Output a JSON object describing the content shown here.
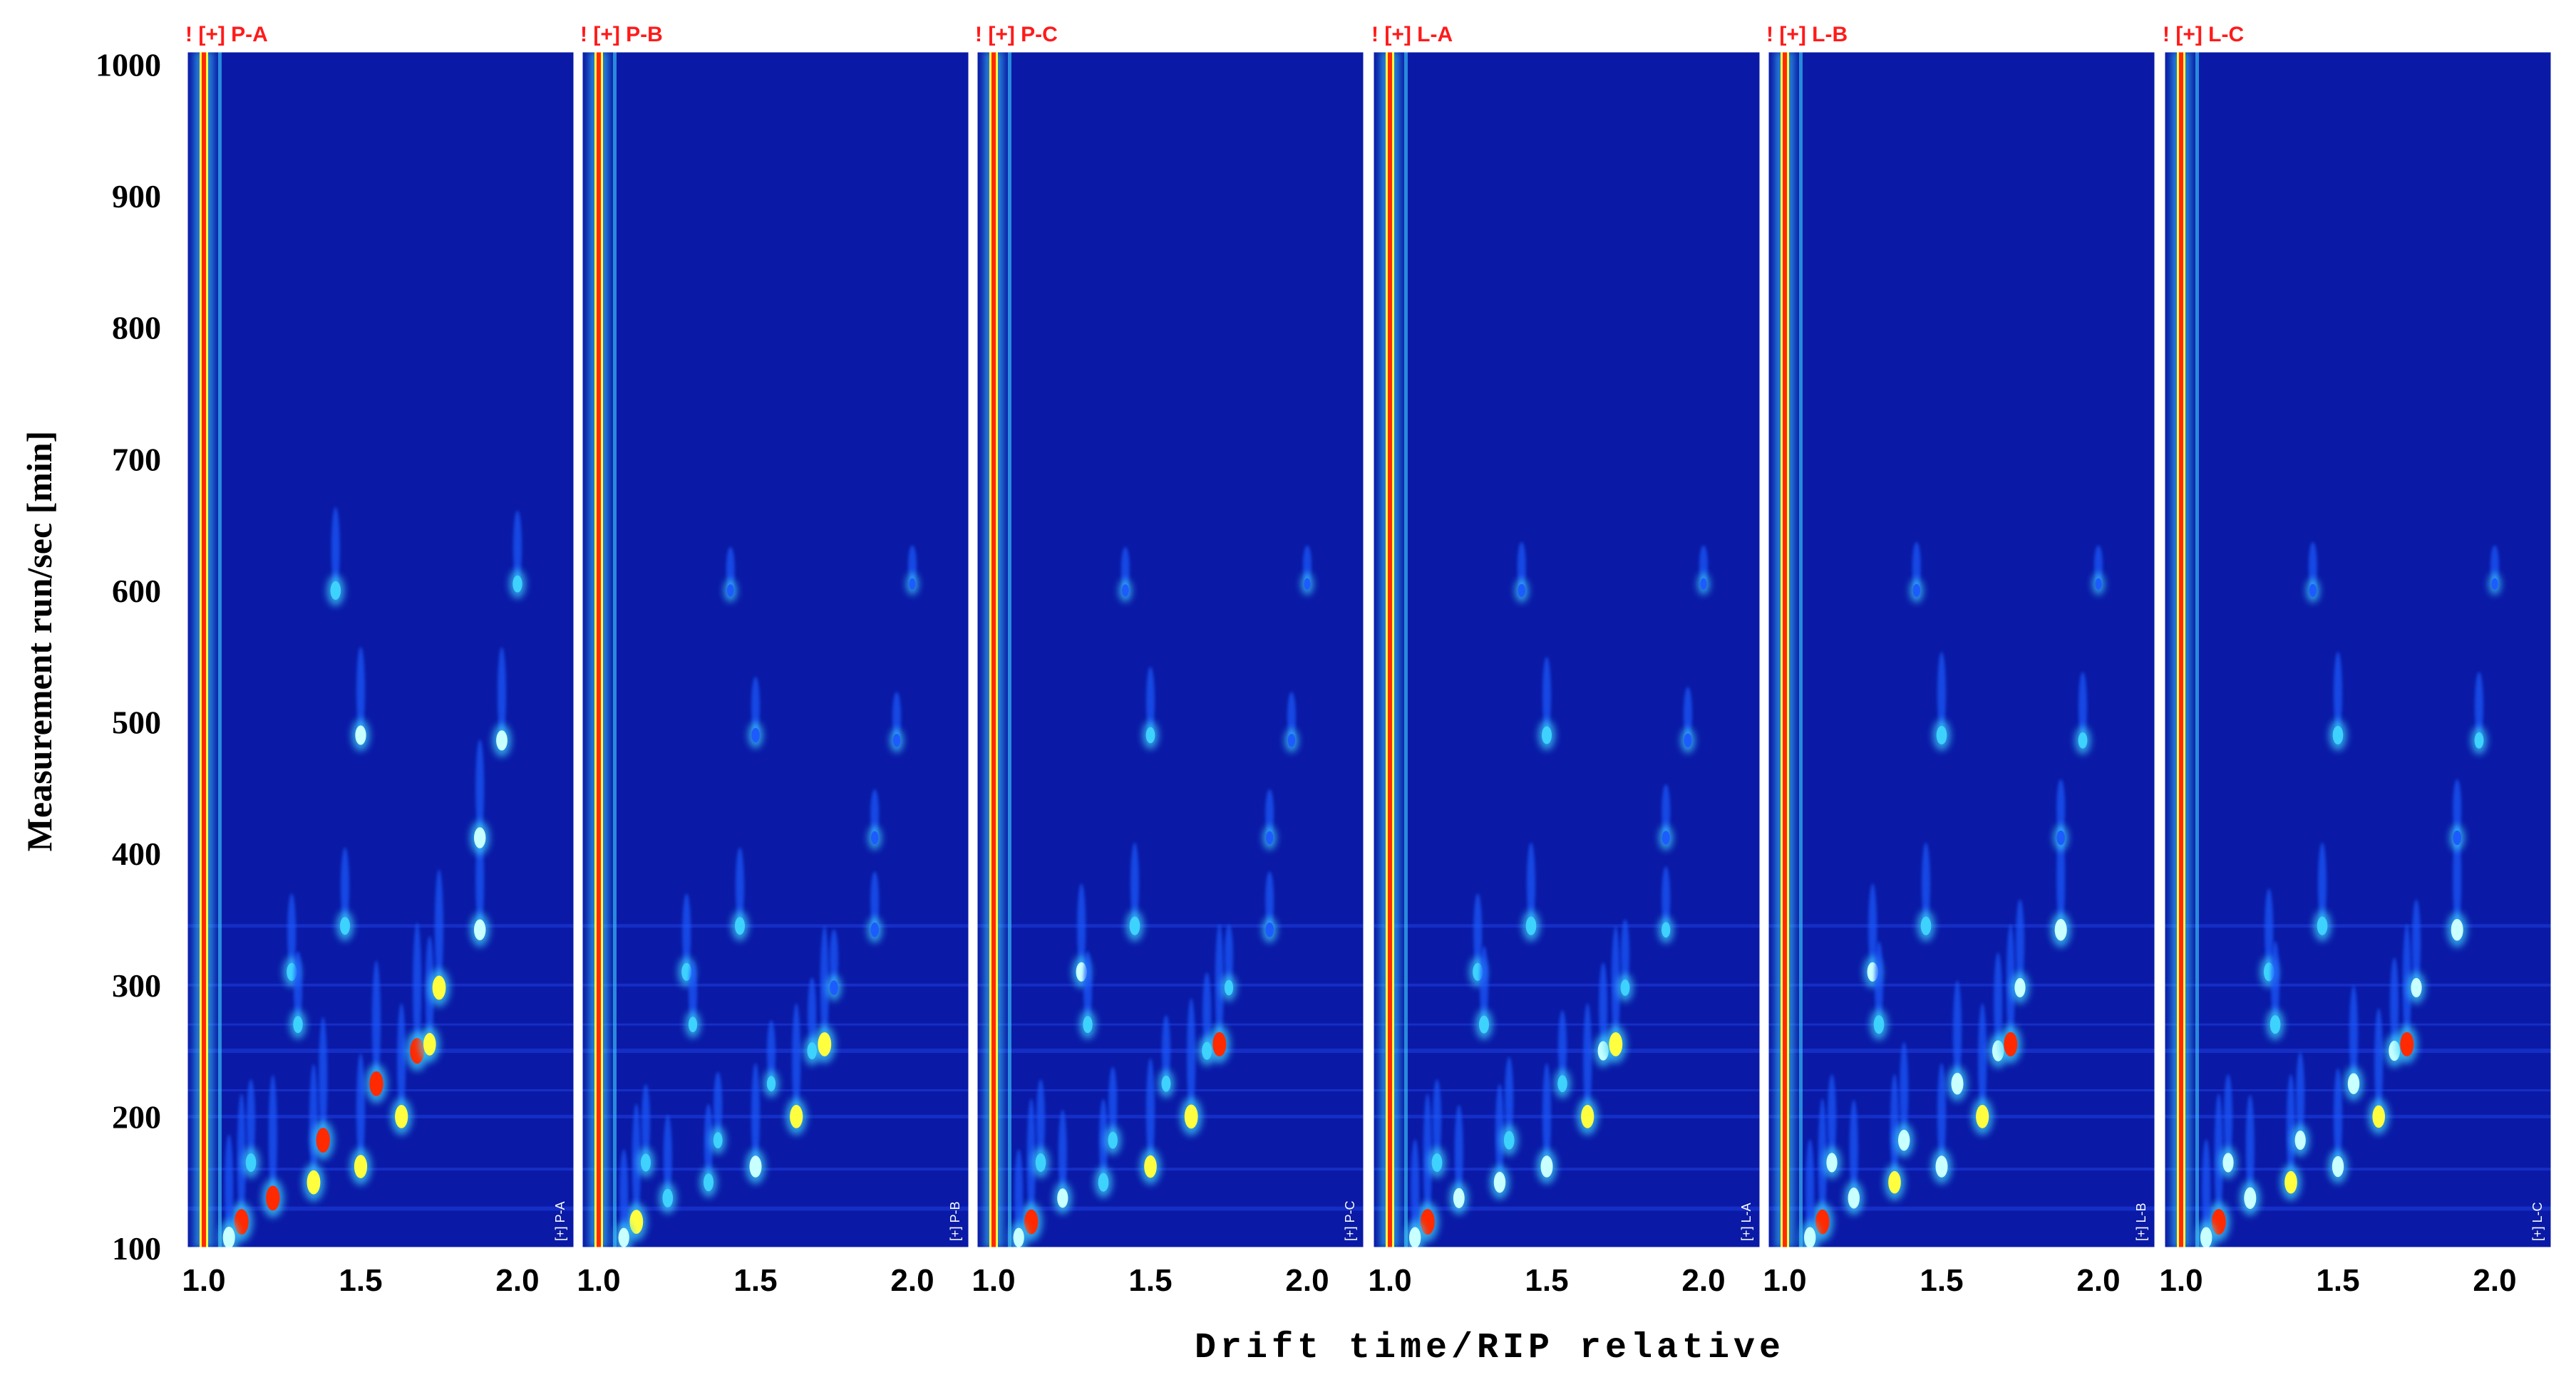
{
  "chart_data": {
    "type": "heatmap",
    "ylabel": "Measurement run/sec [min]",
    "xlabel": "Drift time/RIP relative",
    "yticks": [
      "100",
      "200",
      "300",
      "400",
      "500",
      "600",
      "700",
      "800",
      "900",
      "1000"
    ],
    "xticks": [
      "1.0",
      "1.5",
      "2.0"
    ],
    "ylim": [
      100,
      1010
    ],
    "xlim": [
      0.95,
      2.15
    ],
    "panels": [
      {
        "title": "! [+] P-A",
        "tag": "[+] P-A"
      },
      {
        "title": "! [+] P-B",
        "tag": "[+] P-B"
      },
      {
        "title": "! [+] P-C",
        "tag": "[+] P-C"
      },
      {
        "title": "! [+] L-A",
        "tag": "[+] L-A"
      },
      {
        "title": "! [+] L-B",
        "tag": "[+] L-B"
      },
      {
        "title": "! [+] L-C",
        "tag": "[+] L-C"
      }
    ],
    "rip_drift": 1.0,
    "background_color": "#0a1aa6",
    "title_color": "#ff1a1a",
    "colormap": [
      "#0a1aa6",
      "#1c5cff",
      "#3ed2ff",
      "#c8ffff",
      "#ffff40",
      "#ff2a00"
    ],
    "peaks": [
      {
        "drift": 1.12,
        "rt": 120,
        "i": [
          1.0,
          0.9,
          0.95,
          1.0,
          0.95,
          1.0
        ]
      },
      {
        "drift": 1.22,
        "rt": 138,
        "i": [
          0.95,
          0.55,
          0.6,
          0.65,
          0.7,
          0.75
        ]
      },
      {
        "drift": 1.35,
        "rt": 150,
        "i": [
          0.9,
          0.5,
          0.55,
          0.7,
          0.8,
          0.8
        ]
      },
      {
        "drift": 1.38,
        "rt": 182,
        "i": [
          0.95,
          0.4,
          0.45,
          0.55,
          0.7,
          0.6
        ]
      },
      {
        "drift": 1.5,
        "rt": 162,
        "i": [
          0.85,
          0.75,
          0.8,
          0.75,
          0.75,
          0.7
        ]
      },
      {
        "drift": 1.55,
        "rt": 225,
        "i": [
          0.95,
          0.35,
          0.4,
          0.45,
          0.75,
          0.7
        ]
      },
      {
        "drift": 1.63,
        "rt": 200,
        "i": [
          0.85,
          0.85,
          0.9,
          0.85,
          0.85,
          0.8
        ]
      },
      {
        "drift": 1.68,
        "rt": 250,
        "i": [
          1.0,
          0.45,
          0.5,
          0.6,
          0.7,
          0.65
        ]
      },
      {
        "drift": 1.72,
        "rt": 255,
        "i": [
          0.8,
          0.9,
          0.92,
          0.9,
          0.92,
          0.92
        ]
      },
      {
        "drift": 1.75,
        "rt": 298,
        "i": [
          0.9,
          0.3,
          0.35,
          0.4,
          0.6,
          0.6
        ]
      },
      {
        "drift": 1.88,
        "rt": 342,
        "i": [
          0.7,
          0.3,
          0.3,
          0.35,
          0.75,
          0.75
        ]
      },
      {
        "drift": 1.88,
        "rt": 412,
        "i": [
          0.7,
          0.2,
          0.2,
          0.25,
          0.3,
          0.3
        ]
      },
      {
        "drift": 1.95,
        "rt": 486,
        "i": [
          0.65,
          0.2,
          0.2,
          0.25,
          0.4,
          0.4
        ]
      },
      {
        "drift": 1.5,
        "rt": 490,
        "i": [
          0.6,
          0.3,
          0.4,
          0.5,
          0.55,
          0.55
        ]
      },
      {
        "drift": 1.45,
        "rt": 345,
        "i": [
          0.5,
          0.5,
          0.55,
          0.55,
          0.55,
          0.55
        ]
      },
      {
        "drift": 1.28,
        "rt": 310,
        "i": [
          0.5,
          0.5,
          0.6,
          0.5,
          0.6,
          0.55
        ]
      },
      {
        "drift": 1.42,
        "rt": 600,
        "i": [
          0.55,
          0.15,
          0.15,
          0.2,
          0.2,
          0.2
        ]
      },
      {
        "drift": 2.0,
        "rt": 605,
        "i": [
          0.45,
          0.1,
          0.1,
          0.1,
          0.1,
          0.1
        ]
      },
      {
        "drift": 1.3,
        "rt": 270,
        "i": [
          0.45,
          0.35,
          0.45,
          0.5,
          0.55,
          0.55
        ]
      },
      {
        "drift": 1.15,
        "rt": 165,
        "i": [
          0.55,
          0.5,
          0.55,
          0.55,
          0.6,
          0.6
        ]
      },
      {
        "drift": 1.08,
        "rt": 108,
        "i": [
          0.75,
          0.6,
          0.6,
          0.7,
          0.7,
          0.7
        ]
      }
    ]
  }
}
